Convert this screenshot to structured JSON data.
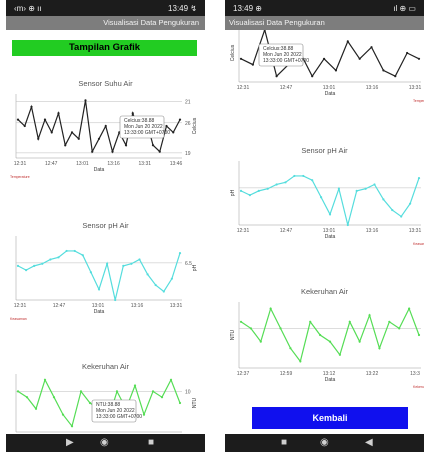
{
  "left_screen": {
    "status": {
      "left": "‹m› ⊕ ıı",
      "right": "13:49 ↯"
    },
    "app_title": "Visualisasi Data Pengukuran",
    "button_label": "Tampilan Grafik",
    "charts": [
      {
        "title": "Sensor Suhu Air",
        "color": "#222222",
        "xlabel": "Data",
        "ylabel": "Celcius",
        "legend": "Temperature",
        "ref_labels": [
          "21",
          "26",
          "19"
        ],
        "xticks": [
          "12:31",
          "12:47",
          "13:01",
          "13:16",
          "13:31",
          "13:46"
        ],
        "tooltip": [
          "Celcius:38.88",
          "Mon Jun 20 2022",
          "13:33:00 GMT+0700"
        ]
      },
      {
        "title": "Sensor pH Air",
        "color": "#55dddd",
        "xlabel": "Data",
        "ylabel": "pH",
        "legend": "Keasaman",
        "ref_labels": [
          "6.5"
        ],
        "xticks": [
          "12:31",
          "12:47",
          "13:01",
          "13:16",
          "13:31"
        ],
        "tooltip": []
      },
      {
        "title": "Kekeruhan Air",
        "color": "#55dd55",
        "xlabel": "",
        "ylabel": "NTU",
        "legend": "",
        "ref_labels": [
          "10"
        ],
        "xticks": [],
        "tooltip": [
          "NTU:38.88",
          "Mon Jun 20 2022",
          "13:33:00 GMT+0700"
        ]
      }
    ]
  },
  "right_screen": {
    "status": {
      "left": "13:49 ⊕",
      "right": "ıl ⊕ ▭"
    },
    "app_title": "Visualisasi Data Pengukuran",
    "button_label": "Kembali",
    "charts": [
      {
        "title": "",
        "color": "#222222",
        "xlabel": "Data",
        "ylabel": "Celcius",
        "legend": "Temperature",
        "ref_labels": [],
        "xticks": [
          "12:31",
          "12:47",
          "13:01",
          "13:16",
          "13:31"
        ],
        "tooltip": [
          "Celcius:38.88",
          "Mon Jun 20 2022",
          "13:33:00 GMT+0700"
        ]
      },
      {
        "title": "Sensor pH Air",
        "color": "#55dddd",
        "xlabel": "Data",
        "ylabel": "pH",
        "legend": "Keasaman",
        "ref_labels": [
          "7.5"
        ],
        "xticks": [
          "12:31",
          "12:47",
          "13:01",
          "13:16",
          "13:31"
        ],
        "tooltip": []
      },
      {
        "title": "Kekeruhan Air",
        "color": "#55dd55",
        "xlabel": "Data",
        "ylabel": "NTU",
        "legend": "Kekeruhan",
        "ref_labels": [],
        "xticks": [
          "12:37",
          "12:59",
          "13:12",
          "13:22",
          "13:3"
        ],
        "tooltip": []
      }
    ]
  },
  "navbar": {
    "back_icon": "back-triangle-icon",
    "home_icon": "home-circle-icon",
    "recents_icon": "recents-square-icon"
  },
  "chart_data": [
    {
      "type": "line",
      "title": "Sensor Suhu Air",
      "ylabel": "Celcius",
      "xlabel": "Data",
      "series": [
        {
          "name": "Temperature",
          "values": [
            24,
            23,
            26,
            21,
            24,
            22,
            25,
            20,
            22,
            21,
            27,
            19,
            21,
            23,
            19,
            22,
            20,
            25,
            22,
            24,
            20,
            19,
            23,
            22,
            24
          ]
        }
      ],
      "ylim": [
        18,
        28
      ]
    },
    {
      "type": "line",
      "title": "Sensor pH Air",
      "ylabel": "pH",
      "xlabel": "Data",
      "series": [
        {
          "name": "Keasaman",
          "values": [
            6.6,
            6.4,
            6.6,
            6.7,
            6.9,
            7.0,
            7.3,
            7.3,
            7.1,
            6.3,
            5.5,
            6.7,
            5.0,
            6.6,
            6.7,
            6.9,
            6.2,
            5.7,
            5.4,
            6.0,
            7.2
          ]
        }
      ],
      "ylim": [
        5,
        8
      ]
    },
    {
      "type": "line",
      "title": "Kekeruhan Air",
      "ylabel": "NTU",
      "series": [
        {
          "values": [
            12,
            11,
            9,
            14,
            11,
            8,
            6,
            12,
            10,
            9,
            7,
            12,
            9,
            13,
            8,
            12,
            11,
            14,
            10
          ]
        }
      ],
      "ylim": [
        5,
        15
      ]
    }
  ]
}
